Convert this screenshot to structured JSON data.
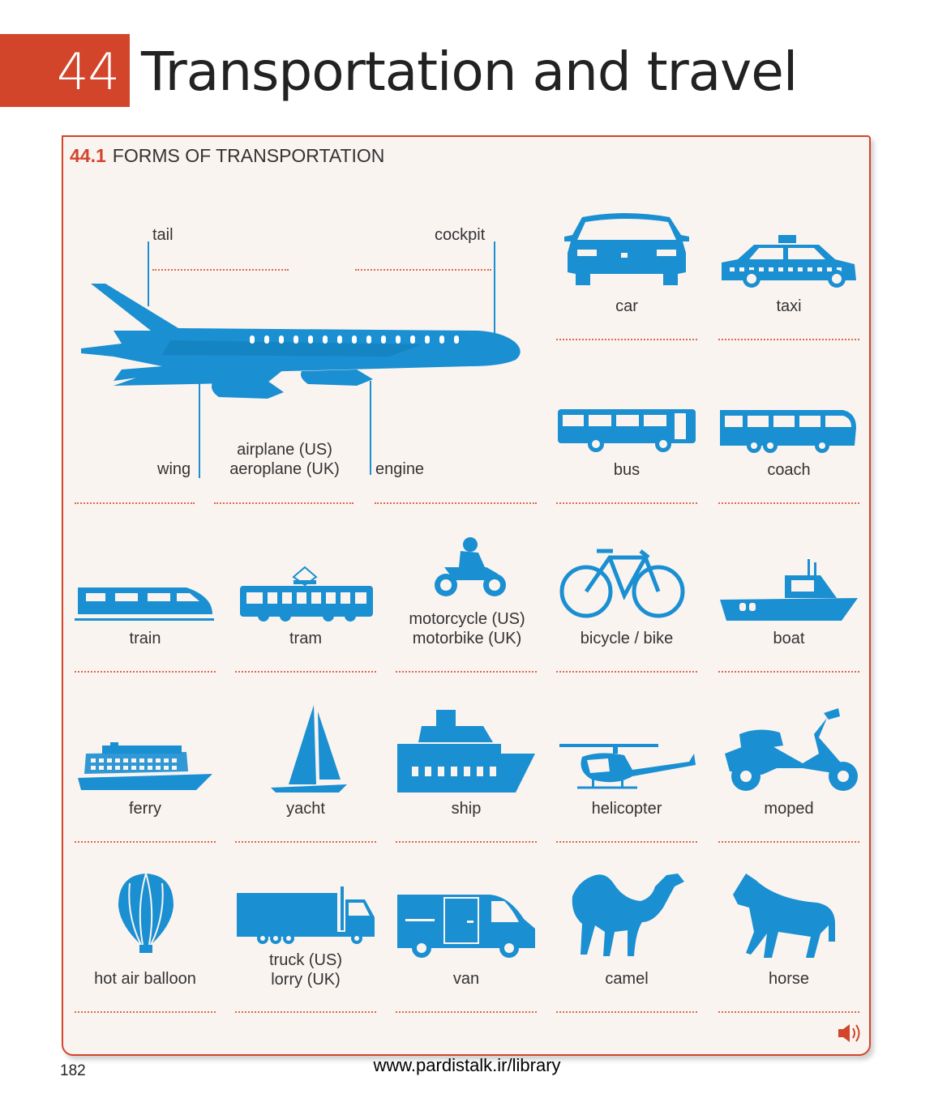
{
  "chapter": {
    "number": "44",
    "title": "Transportation and travel"
  },
  "section": {
    "number": "44.1",
    "title": "FORMS OF TRANSPORTATION"
  },
  "airplane_labels": {
    "tail": "tail",
    "cockpit": "cockpit",
    "wing": "wing",
    "engine": "engine",
    "name_line1": "airplane (US)",
    "name_line2": "aeroplane (UK)"
  },
  "vehicles": {
    "car": "car",
    "taxi": "taxi",
    "bus": "bus",
    "coach": "coach",
    "train": "train",
    "tram": "tram",
    "motorcycle_line1": "motorcycle (US)",
    "motorcycle_line2": "motorbike (UK)",
    "bicycle": "bicycle / bike",
    "boat": "boat",
    "ferry": "ferry",
    "yacht": "yacht",
    "ship": "ship",
    "helicopter": "helicopter",
    "moped": "moped",
    "balloon": "hot air balloon",
    "truck_line1": "truck (US)",
    "truck_line2": "lorry (UK)",
    "van": "van",
    "camel": "camel",
    "horse": "horse"
  },
  "colors": {
    "accent": "#d2452b",
    "icon": "#1a8fd1",
    "panel": "#faf4f1"
  },
  "icons": {
    "audio": "speaker-icon"
  },
  "footer": {
    "page_number": "182",
    "url": "www.pardistalk.ir/library"
  }
}
